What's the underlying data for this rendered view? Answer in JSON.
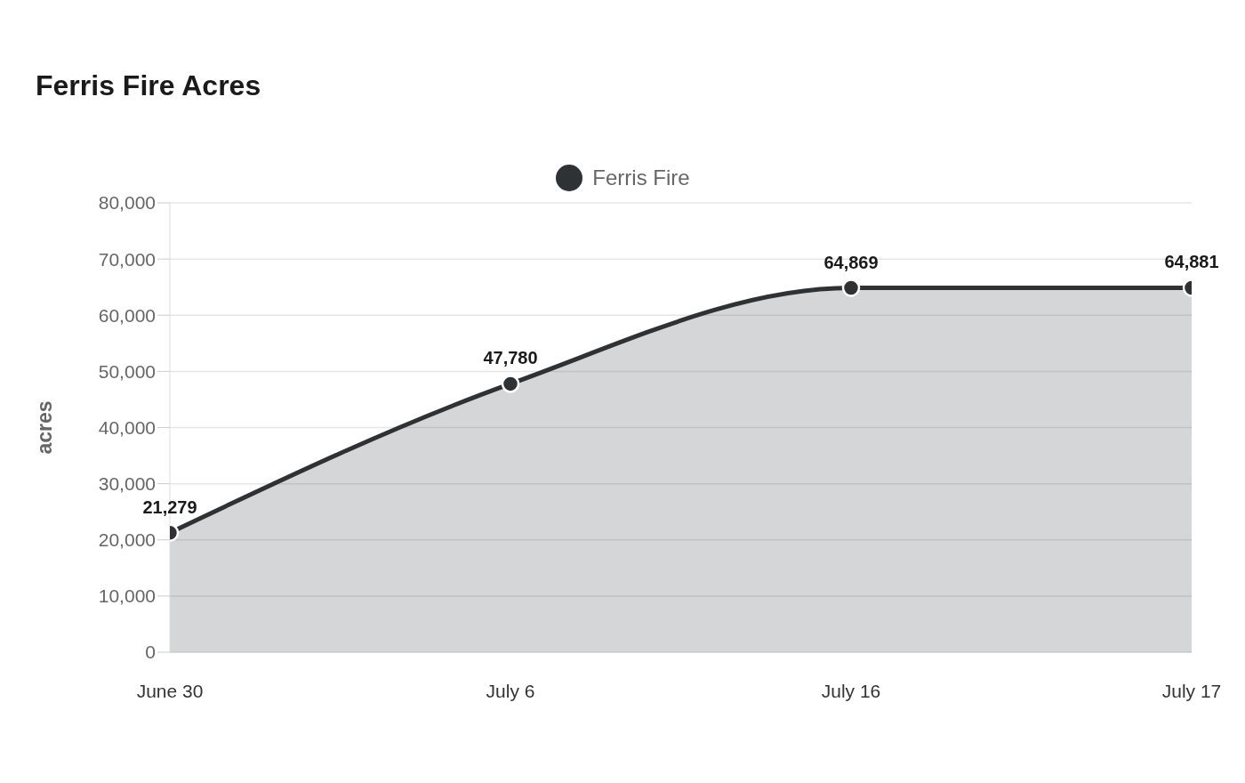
{
  "chart_data": {
    "type": "area",
    "title": "Ferris Fire Acres",
    "ylabel": "acres",
    "categories": [
      "June 30",
      "July 6",
      "July 16",
      "July 17"
    ],
    "series": [
      {
        "name": "Ferris Fire",
        "color": "#2e3235",
        "values": [
          21279,
          47780,
          64869,
          64881
        ],
        "value_labels": [
          "21,279",
          "47,780",
          "64,869",
          "64,881"
        ]
      }
    ],
    "ylim": [
      0,
      80000
    ],
    "yticks": [
      0,
      {
        "value": 10000,
        "label": "10,000"
      },
      {
        "value": 20000,
        "label": "20,000"
      },
      {
        "value": 30000,
        "label": "30,000"
      },
      {
        "value": 40000,
        "label": "40,000"
      },
      {
        "value": 50000,
        "label": "50,000"
      },
      {
        "value": 60000,
        "label": "60,000"
      },
      {
        "value": 70000,
        "label": "70,000"
      },
      {
        "value": 80000,
        "label": "80,000"
      }
    ],
    "grid": "y",
    "legend": "top",
    "marker": "circle"
  }
}
